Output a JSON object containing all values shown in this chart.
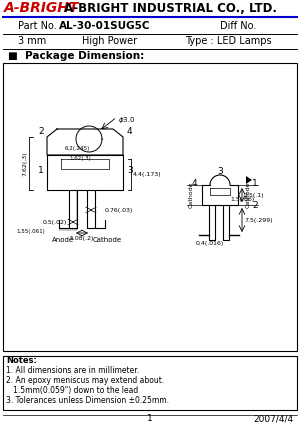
{
  "title_brand": "A-BRIGHT",
  "title_company": " A-BRIGHT INDUSTRIAL CO., LTD.",
  "part_no_label": "Part No.",
  "part_no_value": "AL-30-01SUG5C",
  "diff_no_label": "Diff No.",
  "size_value": "3 mm",
  "power_value": "High Power",
  "type_value": "Type : LED Lamps",
  "section_title": "■  Package Dimension:",
  "notes_title": "Notes:",
  "note1": "1. All dimensions are in millimeter.",
  "note2": "2. An epoxy meniscus may extend about.",
  "note2b": "   1.5mm(0.059\") down to the lead",
  "note3": "3. Tolerances unless Dimension ±0.25mm.",
  "footer_page": "1",
  "footer_date": "2007/4/4",
  "brand_color": "#cc0000",
  "line_color": "#0000cc",
  "bg_color": "#ffffff",
  "border_color": "#000000"
}
